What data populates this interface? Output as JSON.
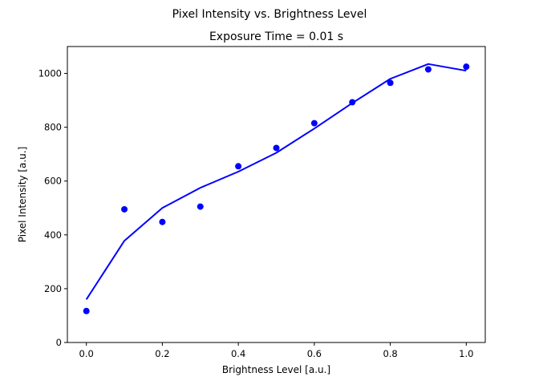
{
  "chart_data": {
    "type": "scatter",
    "suptitle": "Pixel Intensity vs. Brightness Level",
    "title": "Exposure Time = 0.01 s",
    "xlabel": "Brightness Level [a.u.]",
    "ylabel": "Pixel Intensity [a.u.]",
    "xlim": [
      -0.05,
      1.05
    ],
    "ylim": [
      0,
      1100
    ],
    "xticks": [
      "0.0",
      "0.2",
      "0.4",
      "0.6",
      "0.8",
      "1.0"
    ],
    "yticks": [
      "0",
      "200",
      "400",
      "600",
      "800",
      "1000"
    ],
    "grid": false,
    "color": "#0000ff",
    "series": [
      {
        "kind": "points",
        "x": [
          0.0,
          0.1,
          0.2,
          0.3,
          0.4,
          0.5,
          0.6,
          0.7,
          0.8,
          0.9,
          1.0
        ],
        "y": [
          117,
          495,
          448,
          505,
          655,
          723,
          815,
          893,
          965,
          1015,
          1025
        ]
      },
      {
        "kind": "line",
        "x": [
          0.0,
          0.1,
          0.2,
          0.3,
          0.4,
          0.5,
          0.6,
          0.7,
          0.8,
          0.9,
          1.0
        ],
        "y": [
          160,
          378,
          500,
          575,
          635,
          705,
          795,
          890,
          980,
          1035,
          1010
        ]
      }
    ]
  }
}
